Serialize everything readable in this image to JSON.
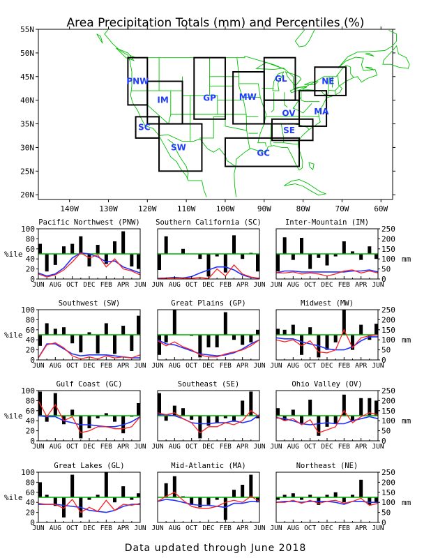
{
  "title": "Area Precipitation Totals (mm) and Percentiles (%)",
  "footer": "Data updated through June 2018",
  "map": {
    "lat_ticks": [
      "55N",
      "50N",
      "45N",
      "40N",
      "35N",
      "30N",
      "25N",
      "20N"
    ],
    "lon_ticks": [
      "140W",
      "130W",
      "120W",
      "110W",
      "100W",
      "90W",
      "80W",
      "70W",
      "60W"
    ],
    "regions": [
      {
        "code": "PNW",
        "label": "PNW"
      },
      {
        "code": "SC",
        "label": "SC"
      },
      {
        "code": "IM",
        "label": "IM"
      },
      {
        "code": "SW",
        "label": "SW"
      },
      {
        "code": "GP",
        "label": "GP"
      },
      {
        "code": "MW",
        "label": "MW"
      },
      {
        "code": "GL",
        "label": "GL"
      },
      {
        "code": "OV",
        "label": "OV"
      },
      {
        "code": "SE",
        "label": "SE"
      },
      {
        "code": "MA",
        "label": "MA"
      },
      {
        "code": "NE",
        "label": "NE"
      },
      {
        "code": "GC",
        "label": "GC"
      }
    ],
    "colors": {
      "land": "#00c000",
      "boxes": "#000000",
      "labels": "#1e3cff"
    }
  },
  "colors": {
    "observed": "#ff2020",
    "normal": "#2030ff",
    "median_line": "#00b000",
    "bars": "#000000"
  },
  "chart_data": [
    {
      "type": "bar+line",
      "title": "Pacific Northwest (PNW)",
      "x": [
        "JUN",
        "JUL",
        "AUG",
        "SEP",
        "OCT",
        "NOV",
        "DEC",
        "JAN",
        "FEB",
        "MAR",
        "APR",
        "MAY",
        "JUN"
      ],
      "x_tick_labels": [
        "JUN",
        "AUG",
        "OCT",
        "DEC",
        "FEB",
        "APR",
        "JUN"
      ],
      "percentile": [
        70,
        15,
        28,
        65,
        70,
        85,
        25,
        68,
        30,
        75,
        95,
        25,
        20
      ],
      "precip_mm": [
        25,
        10,
        20,
        45,
        85,
        130,
        105,
        120,
        60,
        100,
        50,
        40,
        20
      ],
      "normal_mm": [
        30,
        15,
        25,
        55,
        105,
        130,
        125,
        110,
        85,
        90,
        60,
        45,
        30
      ],
      "yleft_lim": [
        0,
        100
      ],
      "yright_lim": [
        0,
        250
      ],
      "median": 50
    },
    {
      "type": "bar+line",
      "title": "Southern California (SC)",
      "x": [
        "JUN",
        "JUL",
        "AUG",
        "SEP",
        "OCT",
        "NOV",
        "DEC",
        "JAN",
        "FEB",
        "MAR",
        "APR",
        "MAY",
        "JUN"
      ],
      "x_tick_labels": [
        "JUN",
        "AUG",
        "OCT",
        "DEC",
        "FEB",
        "APR",
        "JUN"
      ],
      "percentile": [
        18,
        85,
        50,
        60,
        50,
        40,
        5,
        45,
        13,
        87,
        40,
        52,
        15
      ],
      "precip_mm": [
        2,
        5,
        5,
        5,
        3,
        8,
        2,
        50,
        15,
        70,
        25,
        10,
        3
      ],
      "normal_mm": [
        3,
        5,
        8,
        5,
        12,
        30,
        45,
        60,
        60,
        45,
        20,
        8,
        3
      ],
      "yleft_lim": [
        0,
        100
      ],
      "yright_lim": [
        0,
        250
      ],
      "median": 50
    },
    {
      "type": "bar+line",
      "title": "Inter-Mountain (IM)",
      "x": [
        "JUN",
        "JUL",
        "AUG",
        "SEP",
        "OCT",
        "NOV",
        "DEC",
        "JAN",
        "FEB",
        "MAR",
        "APR",
        "MAY",
        "JUN"
      ],
      "x_tick_labels": [
        "JUN",
        "AUG",
        "OCT",
        "DEC",
        "FEB",
        "APR",
        "JUN"
      ],
      "percentile": [
        15,
        83,
        38,
        82,
        20,
        42,
        27,
        45,
        75,
        55,
        38,
        65,
        40
      ],
      "precip_mm": [
        30,
        30,
        35,
        25,
        30,
        25,
        15,
        25,
        40,
        45,
        30,
        40,
        30
      ],
      "normal_mm": [
        30,
        40,
        40,
        35,
        35,
        35,
        35,
        35,
        35,
        40,
        40,
        45,
        35
      ],
      "yleft_lim": [
        0,
        100
      ],
      "yright_lim": [
        0,
        250
      ],
      "median": 50
    },
    {
      "type": "bar+line",
      "title": "Southwest (SW)",
      "x": [
        "JUN",
        "JUL",
        "AUG",
        "SEP",
        "OCT",
        "NOV",
        "DEC",
        "JAN",
        "FEB",
        "MAR",
        "APR",
        "MAY",
        "JUN"
      ],
      "x_tick_labels": [
        "JUN",
        "AUG",
        "OCT",
        "DEC",
        "FEB",
        "APR",
        "JUN"
      ],
      "percentile": [
        28,
        73,
        62,
        65,
        33,
        15,
        55,
        13,
        73,
        12,
        68,
        18,
        88
      ],
      "precip_mm": [
        10,
        75,
        85,
        60,
        20,
        5,
        15,
        5,
        20,
        10,
        15,
        10,
        25
      ],
      "normal_mm": [
        10,
        80,
        80,
        55,
        30,
        20,
        25,
        25,
        25,
        20,
        15,
        10,
        10
      ],
      "yleft_lim": [
        0,
        100
      ],
      "yright_lim": [
        0,
        250
      ],
      "median": 50
    },
    {
      "type": "bar+line",
      "title": "Great Plains (GP)",
      "x": [
        "JUN",
        "JUL",
        "AUG",
        "SEP",
        "OCT",
        "NOV",
        "DEC",
        "JAN",
        "FEB",
        "MAR",
        "APR",
        "MAY",
        "JUN"
      ],
      "x_tick_labels": [
        "JUN",
        "AUG",
        "OCT",
        "DEC",
        "FEB",
        "APR",
        "JUN"
      ],
      "percentile": [
        10,
        35,
        100,
        50,
        48,
        5,
        25,
        25,
        95,
        40,
        30,
        35,
        60
      ],
      "precip_mm": [
        95,
        70,
        90,
        65,
        50,
        25,
        15,
        15,
        30,
        40,
        50,
        70,
        100
      ],
      "normal_mm": [
        100,
        80,
        75,
        60,
        45,
        30,
        25,
        20,
        25,
        35,
        55,
        80,
        100
      ],
      "yleft_lim": [
        0,
        100
      ],
      "yright_lim": [
        0,
        250
      ],
      "median": 50
    },
    {
      "type": "bar+line",
      "title": "Midwest (MW)",
      "x": [
        "JUN",
        "JUL",
        "AUG",
        "SEP",
        "OCT",
        "NOV",
        "DEC",
        "JAN",
        "FEB",
        "MAR",
        "APR",
        "MAY",
        "JUN"
      ],
      "x_tick_labels": [
        "JUN",
        "AUG",
        "OCT",
        "DEC",
        "FEB",
        "APR",
        "JUN"
      ],
      "percentile": [
        62,
        60,
        70,
        10,
        65,
        5,
        20,
        35,
        100,
        20,
        70,
        40,
        72
      ],
      "precip_mm": [
        100,
        90,
        100,
        70,
        95,
        40,
        35,
        50,
        150,
        60,
        110,
        120,
        125
      ],
      "normal_mm": [
        110,
        105,
        105,
        90,
        80,
        70,
        55,
        50,
        50,
        65,
        95,
        115,
        115
      ],
      "yleft_lim": [
        0,
        100
      ],
      "yright_lim": [
        0,
        250
      ],
      "median": 50
    },
    {
      "type": "bar+line",
      "title": "Gulf Coast (GC)",
      "x": [
        "JUN",
        "JUL",
        "AUG",
        "SEP",
        "OCT",
        "NOV",
        "DEC",
        "JAN",
        "FEB",
        "MAR",
        "APR",
        "MAY",
        "JUN"
      ],
      "x_tick_labels": [
        "JUN",
        "AUG",
        "OCT",
        "DEC",
        "FEB",
        "APR",
        "JUN"
      ],
      "percentile": [
        98,
        38,
        95,
        33,
        62,
        5,
        25,
        45,
        55,
        38,
        15,
        48,
        75
      ],
      "precip_mm": [
        200,
        120,
        180,
        100,
        120,
        40,
        50,
        70,
        70,
        60,
        60,
        70,
        120
      ],
      "normal_mm": [
        125,
        120,
        120,
        100,
        90,
        80,
        80,
        75,
        70,
        70,
        80,
        95,
        120
      ],
      "yleft_lim": [
        0,
        100
      ],
      "yright_lim": [
        0,
        250
      ],
      "median": 50
    },
    {
      "type": "bar+line",
      "title": "Southeast (SE)",
      "x": [
        "JUN",
        "JUL",
        "AUG",
        "SEP",
        "OCT",
        "NOV",
        "DEC",
        "JAN",
        "FEB",
        "MAR",
        "APR",
        "MAY",
        "JUN"
      ],
      "x_tick_labels": [
        "JUN",
        "AUG",
        "OCT",
        "DEC",
        "FEB",
        "APR",
        "JUN"
      ],
      "percentile": [
        95,
        40,
        70,
        65,
        42,
        5,
        30,
        35,
        45,
        38,
        80,
        98,
        45
      ],
      "precip_mm": [
        140,
        130,
        140,
        110,
        90,
        40,
        70,
        70,
        90,
        80,
        100,
        150,
        120
      ],
      "normal_mm": [
        130,
        130,
        125,
        110,
        90,
        85,
        85,
        90,
        90,
        100,
        90,
        100,
        130
      ],
      "yleft_lim": [
        0,
        100
      ],
      "yright_lim": [
        0,
        250
      ],
      "median": 50
    },
    {
      "type": "bar+line",
      "title": "Ohio Valley (OV)",
      "x": [
        "JUN",
        "JUL",
        "AUG",
        "SEP",
        "OCT",
        "NOV",
        "DEC",
        "JAN",
        "FEB",
        "MAR",
        "APR",
        "MAY",
        "JUN"
      ],
      "x_tick_labels": [
        "JUN",
        "AUG",
        "OCT",
        "DEC",
        "FEB",
        "APR",
        "JUN"
      ],
      "percentile": [
        65,
        40,
        62,
        35,
        82,
        10,
        28,
        35,
        92,
        40,
        85,
        85,
        80
      ],
      "precip_mm": [
        120,
        100,
        110,
        80,
        105,
        40,
        55,
        70,
        150,
        90,
        120,
        140,
        130
      ],
      "normal_mm": [
        115,
        110,
        100,
        85,
        80,
        85,
        90,
        85,
        85,
        100,
        110,
        120,
        110
      ],
      "yleft_lim": [
        0,
        100
      ],
      "yright_lim": [
        0,
        250
      ],
      "median": 50
    },
    {
      "type": "bar+line",
      "title": "Great Lakes (GL)",
      "x": [
        "JUN",
        "JUL",
        "AUG",
        "SEP",
        "OCT",
        "NOV",
        "DEC",
        "JAN",
        "FEB",
        "MAR",
        "APR",
        "MAY",
        "JUN"
      ],
      "x_tick_labels": [
        "JUN",
        "AUG",
        "OCT",
        "DEC",
        "FEB",
        "APR",
        "JUN"
      ],
      "percentile": [
        80,
        55,
        33,
        10,
        95,
        10,
        45,
        55,
        100,
        40,
        72,
        45,
        58
      ],
      "precip_mm": [
        95,
        90,
        90,
        70,
        115,
        50,
        75,
        55,
        110,
        60,
        90,
        85,
        95
      ],
      "normal_mm": [
        90,
        90,
        90,
        85,
        80,
        75,
        60,
        55,
        50,
        60,
        80,
        90,
        90
      ],
      "yleft_lim": [
        0,
        100
      ],
      "yright_lim": [
        0,
        250
      ],
      "median": 50
    },
    {
      "type": "bar+line",
      "title": "Mid-Atlantic (MA)",
      "x": [
        "JUN",
        "JUL",
        "AUG",
        "SEP",
        "OCT",
        "NOV",
        "DEC",
        "JAN",
        "FEB",
        "MAR",
        "APR",
        "MAY",
        "JUN"
      ],
      "x_tick_labels": [
        "JUN",
        "AUG",
        "OCT",
        "DEC",
        "FEB",
        "APR",
        "JUN"
      ],
      "percentile": [
        50,
        78,
        92,
        52,
        35,
        30,
        35,
        45,
        5,
        65,
        75,
        95,
        40
      ],
      "precip_mm": [
        105,
        130,
        150,
        110,
        80,
        70,
        70,
        80,
        100,
        110,
        100,
        130,
        105
      ],
      "normal_mm": [
        105,
        115,
        110,
        100,
        90,
        85,
        85,
        80,
        75,
        95,
        95,
        105,
        105
      ],
      "yleft_lim": [
        0,
        100
      ],
      "yright_lim": [
        0,
        250
      ],
      "median": 50
    },
    {
      "type": "bar+line",
      "title": "Northeast (NE)",
      "x": [
        "JUN",
        "JUL",
        "AUG",
        "SEP",
        "OCT",
        "NOV",
        "DEC",
        "JAN",
        "FEB",
        "MAR",
        "APR",
        "MAY",
        "JUN"
      ],
      "x_tick_labels": [
        "JUN",
        "AUG",
        "OCT",
        "DEC",
        "FEB",
        "APR",
        "JUN"
      ],
      "percentile": [
        45,
        55,
        58,
        45,
        55,
        35,
        55,
        60,
        40,
        55,
        85,
        35,
        40
      ],
      "precip_mm": [
        100,
        100,
        110,
        95,
        110,
        95,
        105,
        110,
        95,
        105,
        120,
        85,
        95
      ],
      "normal_mm": [
        100,
        105,
        105,
        100,
        105,
        105,
        105,
        100,
        90,
        105,
        105,
        100,
        100
      ],
      "yleft_lim": [
        0,
        100
      ],
      "yright_lim": [
        0,
        250
      ],
      "median": 50
    }
  ],
  "axis_labels": {
    "left": "%ile",
    "right": "mm",
    "left_ticks": [
      "0",
      "20",
      "40",
      "60",
      "80",
      "100"
    ],
    "right_ticks": [
      "0",
      "50",
      "100",
      "150",
      "200",
      "250"
    ]
  }
}
